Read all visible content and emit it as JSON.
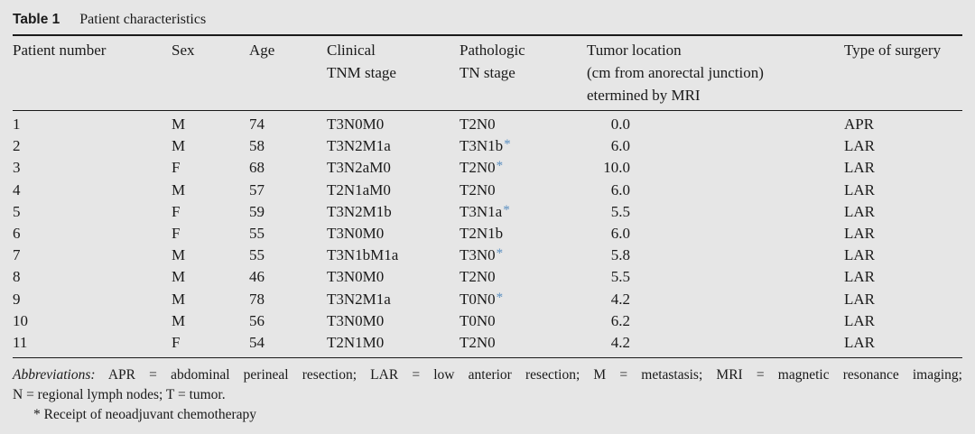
{
  "table": {
    "label": "Table 1",
    "title": "Patient characteristics",
    "headers": [
      "Patient number",
      "Sex",
      "Age",
      "Clinical\nTNM stage",
      "Pathologic\nTN stage",
      "Tumor location\n(cm from anorectal junction)\netermined by MRI",
      "Type of surgery"
    ],
    "rows": [
      {
        "number": "1",
        "sex": "M",
        "age": "74",
        "clinical": "T3N0M0",
        "pathologic": "T2N0",
        "neoadjuvant": false,
        "location": "0.0",
        "surgery": "APR"
      },
      {
        "number": "2",
        "sex": "M",
        "age": "58",
        "clinical": "T3N2M1a",
        "pathologic": "T3N1b",
        "neoadjuvant": true,
        "location": "6.0",
        "surgery": "LAR"
      },
      {
        "number": "3",
        "sex": "F",
        "age": "68",
        "clinical": "T3N2aM0",
        "pathologic": "T2N0",
        "neoadjuvant": true,
        "location": "10.0",
        "surgery": "LAR"
      },
      {
        "number": "4",
        "sex": "M",
        "age": "57",
        "clinical": "T2N1aM0",
        "pathologic": "T2N0",
        "neoadjuvant": false,
        "location": "6.0",
        "surgery": "LAR"
      },
      {
        "number": "5",
        "sex": "F",
        "age": "59",
        "clinical": "T3N2M1b",
        "pathologic": "T3N1a",
        "neoadjuvant": true,
        "location": "5.5",
        "surgery": "LAR"
      },
      {
        "number": "6",
        "sex": "F",
        "age": "55",
        "clinical": "T3N0M0",
        "pathologic": "T2N1b",
        "neoadjuvant": false,
        "location": "6.0",
        "surgery": "LAR"
      },
      {
        "number": "7",
        "sex": "M",
        "age": "55",
        "clinical": "T3N1bM1a",
        "pathologic": "T3N0",
        "neoadjuvant": true,
        "location": "5.8",
        "surgery": "LAR"
      },
      {
        "number": "8",
        "sex": "M",
        "age": "46",
        "clinical": "T3N0M0",
        "pathologic": "T2N0",
        "neoadjuvant": false,
        "location": "5.5",
        "surgery": "LAR"
      },
      {
        "number": "9",
        "sex": "M",
        "age": "78",
        "clinical": "T3N2M1a",
        "pathologic": "T0N0",
        "neoadjuvant": true,
        "location": "4.2",
        "surgery": "LAR"
      },
      {
        "number": "10",
        "sex": "M",
        "age": "56",
        "clinical": "T3N0M0",
        "pathologic": "T0N0",
        "neoadjuvant": false,
        "location": "6.2",
        "surgery": "LAR"
      },
      {
        "number": "11",
        "sex": "F",
        "age": "54",
        "clinical": "T2N1M0",
        "pathologic": "T2N0",
        "neoadjuvant": false,
        "location": "4.2",
        "surgery": "LAR"
      }
    ],
    "star_symbol": "*",
    "star_color": "#5b8fc0"
  },
  "footnotes": {
    "abbreviations_label": "Abbreviations:",
    "abbreviations_line1": "APR = abdominal perineal resection; LAR = low anterior resection; M = metastasis; MRI = magnetic resonance imaging;",
    "abbreviations_line2": "N = regional lymph nodes; T = tumor.",
    "star_note": "* Receipt of neoadjuvant chemotherapy"
  }
}
